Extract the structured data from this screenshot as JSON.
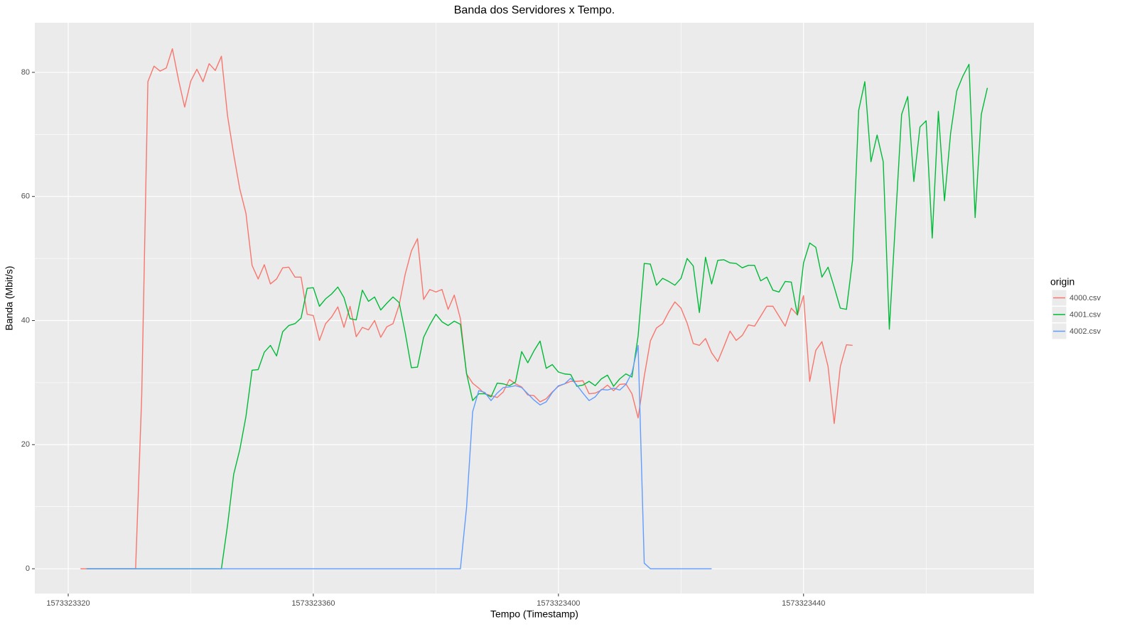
{
  "chart_data": {
    "type": "line",
    "title": "Banda dos Servidores x Tempo.",
    "x_label": "Tempo (Timestamp)",
    "y_label": "Banda (Mbit/s)",
    "legend_title": "origin",
    "legend_position": "right",
    "grid": true,
    "xlim": [
      1573323314.55,
      1573323477.6
    ],
    "ylim": [
      -4,
      88
    ],
    "xticks": [
      1573323320,
      1573323360,
      1573323400,
      1573323440
    ],
    "yticks": [
      0,
      20,
      40,
      60,
      80
    ],
    "x": [
      1573323322,
      1573323323,
      1573323324,
      1573323325,
      1573323326,
      1573323327,
      1573323328,
      1573323329,
      1573323330,
      1573323331,
      1573323332,
      1573323333,
      1573323334,
      1573323335,
      1573323336,
      1573323337,
      1573323338,
      1573323339,
      1573323340,
      1573323341,
      1573323342,
      1573323343,
      1573323344,
      1573323345,
      1573323346,
      1573323347,
      1573323348,
      1573323349,
      1573323350,
      1573323351,
      1573323352,
      1573323353,
      1573323354,
      1573323355,
      1573323356,
      1573323357,
      1573323358,
      1573323359,
      1573323360,
      1573323361,
      1573323362,
      1573323363,
      1573323364,
      1573323365,
      1573323366,
      1573323367,
      1573323368,
      1573323369,
      1573323370,
      1573323371,
      1573323372,
      1573323373,
      1573323374,
      1573323375,
      1573323376,
      1573323377,
      1573323378,
      1573323379,
      1573323380,
      1573323381,
      1573323382,
      1573323383,
      1573323384,
      1573323385,
      1573323386,
      1573323387,
      1573323388,
      1573323389,
      1573323390,
      1573323391,
      1573323392,
      1573323393,
      1573323394,
      1573323395,
      1573323396,
      1573323397,
      1573323398,
      1573323399,
      1573323400,
      1573323401,
      1573323402,
      1573323403,
      1573323404,
      1573323405,
      1573323406,
      1573323407,
      1573323408,
      1573323409,
      1573323410,
      1573323411,
      1573323412,
      1573323413,
      1573323414,
      1573323415,
      1573323416,
      1573323417,
      1573323418,
      1573323419,
      1573323420,
      1573323421,
      1573323422,
      1573323423,
      1573323424,
      1573323425,
      1573323426,
      1573323427,
      1573323428,
      1573323429,
      1573323430,
      1573323431,
      1573323432,
      1573323433,
      1573323434,
      1573323435,
      1573323436,
      1573323437,
      1573323438,
      1573323439,
      1573323440,
      1573323441,
      1573323442,
      1573323443,
      1573323444,
      1573323445,
      1573323446,
      1573323447,
      1573323448,
      1573323449,
      1573323450,
      1573323451,
      1573323452,
      1573323453,
      1573323454,
      1573323455,
      1573323456,
      1573323457,
      1573323458,
      1573323459,
      1573323460,
      1573323461,
      1573323462,
      1573323463,
      1573323464,
      1573323465,
      1573323466,
      1573323467,
      1573323468,
      1573323469,
      1573323470
    ],
    "series": [
      {
        "name": "4000.csv",
        "color": "#F8766D",
        "values": [
          0,
          0,
          0,
          0,
          0,
          0,
          0,
          0,
          0,
          0,
          28,
          78.5,
          81,
          80.2,
          80.7,
          83.8,
          78.8,
          74.4,
          78.6,
          80.5,
          78.5,
          81.4,
          80.3,
          82.6,
          73,
          66.8,
          61.2,
          57.3,
          48.9,
          46.7,
          49,
          45.9,
          46.7,
          48.5,
          48.6,
          47,
          47,
          41,
          40.8,
          36.8,
          39.5,
          40.6,
          42.2,
          38.9,
          42.3,
          37.4,
          38.9,
          38.5,
          40,
          37.3,
          39,
          39.5,
          42.5,
          47.5,
          51.2,
          53.2,
          43.4,
          45,
          44.6,
          45,
          41.8,
          44.1,
          40.3,
          31.4,
          29.9,
          29.1,
          28.2,
          27.9,
          27.6,
          28.5,
          30.5,
          29.8,
          29.3,
          28,
          27.9,
          26.9,
          27.4,
          28.5,
          29.4,
          29.8,
          30.2,
          30.2,
          30.3,
          28.2,
          28.3,
          28.8,
          29.6,
          28.7,
          29.7,
          29.8,
          28.2,
          24.3,
          31,
          36.7,
          38.8,
          39.5,
          41.4,
          43,
          42,
          39.6,
          36.3,
          36,
          37.1,
          34.8,
          33.4,
          35.8,
          38.3,
          36.8,
          37.6,
          39.3,
          39.1,
          40.7,
          42.3,
          42.3,
          40.7,
          39.1,
          42,
          40.9,
          44,
          30.2,
          35.2,
          36.6,
          32.6,
          23.4,
          32.6,
          36.1,
          36,
          null,
          null,
          null,
          null,
          null,
          null,
          null,
          null,
          null,
          null,
          null,
          null,
          null,
          null,
          null,
          null,
          null,
          null,
          null,
          null,
          null,
          null
        ]
      },
      {
        "name": "4001.csv",
        "color": "#00BA38",
        "values": [
          null,
          0,
          0,
          0,
          0,
          0,
          0,
          0,
          0,
          0,
          0,
          0,
          0,
          0,
          0,
          0,
          0,
          0,
          0,
          0,
          0,
          0,
          0,
          0,
          7,
          15.2,
          19.2,
          24.5,
          32,
          32.1,
          34.9,
          36,
          34.3,
          38.2,
          39.2,
          39.5,
          40.4,
          45.2,
          45.3,
          42.3,
          43.5,
          44.3,
          45.4,
          43.7,
          40.3,
          40.1,
          44.9,
          43.1,
          43.8,
          41.7,
          42.8,
          43.8,
          42.9,
          38,
          32.4,
          32.5,
          37.3,
          39.3,
          41,
          39.8,
          39.2,
          39.9,
          39.4,
          31.5,
          27.1,
          28.2,
          28.2,
          27.7,
          29.9,
          29.8,
          29.5,
          30.1,
          35,
          33.2,
          35.1,
          36.7,
          32.3,
          32.9,
          31.7,
          31.4,
          31.3,
          29.4,
          29.6,
          30.2,
          29.5,
          30.6,
          31.2,
          29.4,
          30.6,
          31.4,
          30.9,
          37.5,
          49.2,
          49.1,
          45.7,
          46.8,
          46.3,
          45.7,
          46.8,
          50,
          48.8,
          41.3,
          50.2,
          45.9,
          49.7,
          49.8,
          49.3,
          49.2,
          48.5,
          48.9,
          48.9,
          46.4,
          47,
          44.9,
          44.6,
          46.3,
          46.2,
          40.9,
          49.3,
          52.5,
          51.8,
          47,
          48.6,
          45.4,
          42,
          41.8,
          49.8,
          73.9,
          78.5,
          65.6,
          69.9,
          65.6,
          38.6,
          56,
          73.2,
          76.1,
          62.4,
          71.2,
          72.2,
          53.3,
          73.7,
          59.3,
          70.2,
          77,
          79.4,
          81.3,
          56.6,
          73.2,
          77.5
        ]
      },
      {
        "name": "4002.csv",
        "color": "#619CFF",
        "values": [
          null,
          0,
          0,
          0,
          0,
          0,
          0,
          0,
          0,
          0,
          0,
          0,
          0,
          0,
          0,
          0,
          0,
          0,
          0,
          0,
          0,
          0,
          0,
          0,
          0,
          0,
          0,
          0,
          0,
          0,
          0,
          0,
          0,
          0,
          0,
          0,
          0,
          0,
          0,
          0,
          0,
          0,
          0,
          0,
          0,
          0,
          0,
          0,
          0,
          0,
          0,
          0,
          0,
          0,
          0,
          0,
          0,
          0,
          0,
          0,
          0,
          0,
          0,
          9.8,
          25.3,
          28.7,
          28.4,
          27.1,
          28.3,
          29.2,
          29.3,
          29.5,
          29.2,
          28.2,
          27.2,
          26.4,
          26.9,
          28.4,
          29.5,
          29.8,
          30.7,
          29.6,
          28.3,
          27.1,
          27.7,
          28.9,
          28.8,
          29.1,
          28.8,
          29.7,
          31.6,
          36,
          0.9,
          0,
          0,
          0,
          0,
          0,
          0,
          0,
          0,
          0,
          0,
          0,
          null,
          null,
          null,
          null,
          null,
          null,
          null,
          null,
          null,
          null,
          null,
          null,
          null,
          null,
          null,
          null,
          null,
          null,
          null,
          null,
          null,
          null,
          null,
          null,
          null,
          null,
          null,
          null,
          null,
          null,
          null,
          null,
          null,
          null,
          null,
          null,
          null,
          null,
          null,
          null,
          null,
          null,
          null,
          null,
          null
        ]
      }
    ]
  }
}
